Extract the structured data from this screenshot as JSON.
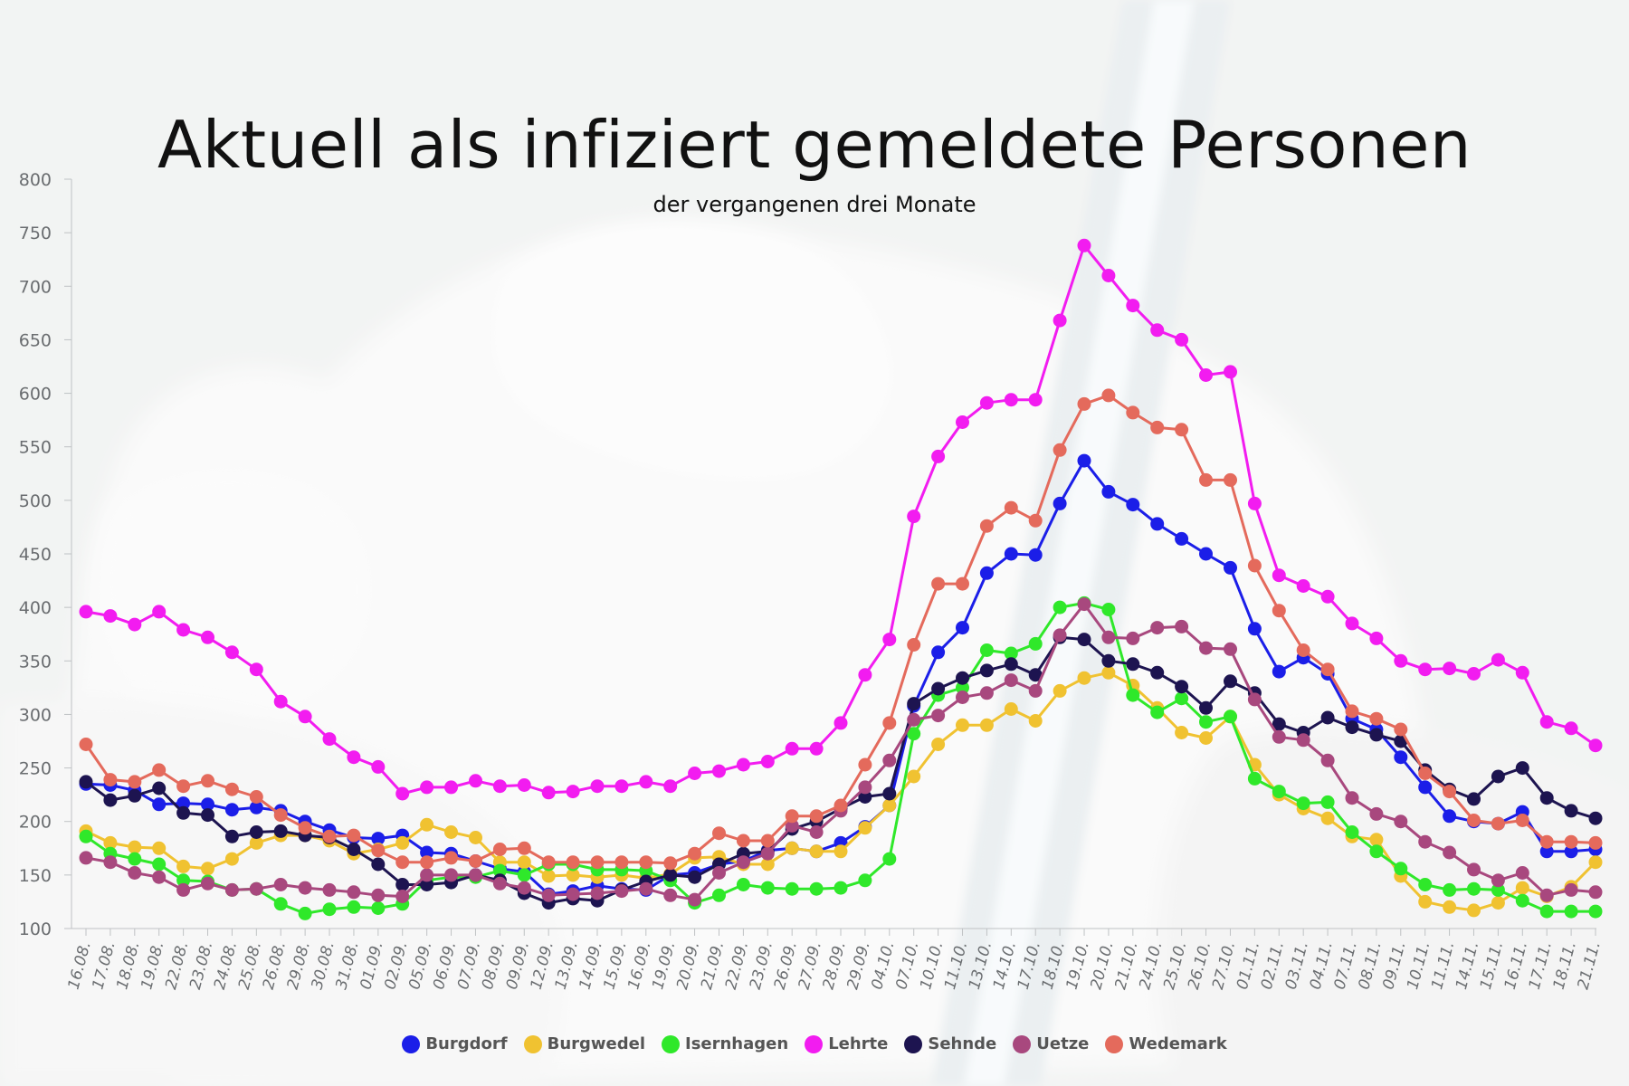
{
  "chart_data": {
    "type": "line",
    "title": "Aktuell als infiziert gemeldete Personen",
    "subtitle": "der vergangenen drei Monate",
    "ylim": [
      100,
      800
    ],
    "yticks": [
      100,
      150,
      200,
      250,
      300,
      350,
      400,
      450,
      500,
      550,
      600,
      650,
      700,
      750,
      800
    ],
    "grid": false,
    "legend_position": "bottom",
    "categories": [
      "16.08.",
      "17.08.",
      "18.08.",
      "19.08.",
      "22.08.",
      "23.08.",
      "24.08.",
      "25.08.",
      "26.08.",
      "29.08.",
      "30.08.",
      "31.08.",
      "01.09.",
      "02.09.",
      "05.09.",
      "06.09.",
      "07.09.",
      "08.09.",
      "09.09.",
      "12.09.",
      "13.09.",
      "14.09.",
      "15.09.",
      "16.09.",
      "19.09.",
      "20.09.",
      "21.09.",
      "22.09.",
      "23.09.",
      "26.09.",
      "27.09.",
      "28.09.",
      "29.09.",
      "04.10.",
      "07.10.",
      "10.10.",
      "11.10.",
      "13.10.",
      "14.10.",
      "17.10.",
      "18.10.",
      "19.10.",
      "20.10.",
      "21.10.",
      "24.10.",
      "25.10.",
      "26.10.",
      "27.10.",
      "01.11.",
      "02.11.",
      "03.11.",
      "04.11.",
      "07.11.",
      "08.11.",
      "09.11.",
      "10.11.",
      "11.11.",
      "14.11.",
      "15.11.",
      "16.11.",
      "17.11.",
      "18.11.",
      "21.11."
    ],
    "series": [
      {
        "name": "Burgdorf",
        "color": "#1b1ee8",
        "values": [
          235,
          234,
          229,
          216,
          217,
          216,
          211,
          213,
          210,
          200,
          192,
          185,
          184,
          187,
          171,
          170,
          163,
          156,
          153,
          132,
          135,
          140,
          137,
          136,
          150,
          152,
          160,
          163,
          173,
          175,
          172,
          180,
          195,
          215,
          308,
          358,
          381,
          432,
          450,
          449,
          497,
          537,
          508,
          496,
          478,
          464,
          450,
          437,
          380,
          340,
          353,
          338,
          296,
          286,
          260,
          232,
          205,
          200,
          198,
          209,
          172,
          172,
          174
        ]
      },
      {
        "name": "Burgwedel",
        "color": "#f0c231",
        "values": [
          191,
          180,
          176,
          175,
          158,
          156,
          165,
          180,
          187,
          187,
          182,
          170,
          174,
          180,
          197,
          190,
          185,
          162,
          162,
          149,
          150,
          148,
          150,
          147,
          151,
          166,
          167,
          160,
          160,
          175,
          172,
          172,
          194,
          215,
          242,
          272,
          290,
          290,
          305,
          294,
          322,
          334,
          339,
          327,
          306,
          283,
          278,
          298,
          253,
          225,
          212,
          203,
          186,
          183,
          149,
          125,
          120,
          117,
          124,
          138,
          130,
          139,
          162
        ]
      },
      {
        "name": "Isernhagen",
        "color": "#2fe82a",
        "values": [
          186,
          170,
          165,
          160,
          145,
          144,
          136,
          137,
          123,
          114,
          118,
          120,
          119,
          123,
          145,
          148,
          148,
          154,
          150,
          160,
          160,
          155,
          155,
          154,
          145,
          124,
          131,
          141,
          138,
          137,
          137,
          138,
          145,
          165,
          282,
          318,
          325,
          360,
          357,
          366,
          400,
          404,
          398,
          318,
          302,
          315,
          293,
          298,
          240,
          228,
          217,
          218,
          190,
          172,
          156,
          141,
          136,
          137,
          136,
          126,
          116,
          116,
          116
        ]
      },
      {
        "name": "Lehrte",
        "color": "#f21cf0",
        "values": [
          396,
          392,
          384,
          396,
          379,
          372,
          358,
          342,
          312,
          298,
          277,
          260,
          251,
          226,
          232,
          232,
          238,
          233,
          234,
          227,
          228,
          233,
          233,
          237,
          233,
          245,
          247,
          253,
          256,
          268,
          268,
          292,
          337,
          370,
          485,
          541,
          573,
          591,
          594,
          594,
          668,
          738,
          710,
          682,
          659,
          650,
          617,
          620,
          497,
          430,
          420,
          410,
          385,
          371,
          350,
          342,
          343,
          338,
          351,
          339,
          293,
          287,
          271
        ]
      },
      {
        "name": "Sehnde",
        "color": "#1d1450",
        "values": [
          237,
          220,
          224,
          231,
          208,
          206,
          186,
          190,
          191,
          187,
          185,
          174,
          160,
          141,
          141,
          143,
          150,
          145,
          133,
          124,
          128,
          126,
          136,
          144,
          150,
          148,
          160,
          170,
          172,
          193,
          200,
          212,
          223,
          226,
          310,
          324,
          334,
          341,
          347,
          337,
          372,
          370,
          350,
          347,
          339,
          326,
          306,
          331,
          320,
          291,
          283,
          297,
          288,
          281,
          275,
          248,
          230,
          221,
          242,
          250,
          222,
          210,
          203
        ]
      },
      {
        "name": "Uetze",
        "color": "#a8487e",
        "values": [
          166,
          162,
          152,
          148,
          136,
          142,
          136,
          137,
          141,
          138,
          136,
          134,
          131,
          130,
          150,
          150,
          150,
          142,
          138,
          131,
          132,
          133,
          135,
          137,
          131,
          127,
          152,
          162,
          170,
          196,
          190,
          210,
          232,
          257,
          295,
          299,
          316,
          320,
          332,
          322,
          374,
          403,
          372,
          371,
          381,
          382,
          362,
          361,
          314,
          279,
          276,
          257,
          222,
          207,
          200,
          181,
          171,
          155,
          145,
          152,
          131,
          136,
          134
        ]
      },
      {
        "name": "Wedemark",
        "color": "#e46a5c",
        "values": [
          272,
          239,
          237,
          248,
          233,
          238,
          230,
          223,
          206,
          194,
          186,
          187,
          173,
          162,
          162,
          166,
          163,
          174,
          175,
          162,
          162,
          162,
          162,
          162,
          161,
          170,
          189,
          182,
          182,
          205,
          205,
          215,
          253,
          292,
          365,
          422,
          422,
          476,
          493,
          481,
          547,
          590,
          598,
          582,
          568,
          566,
          519,
          519,
          439,
          397,
          360,
          342,
          303,
          296,
          286,
          245,
          228,
          201,
          198,
          201,
          181,
          181,
          180
        ]
      }
    ]
  }
}
